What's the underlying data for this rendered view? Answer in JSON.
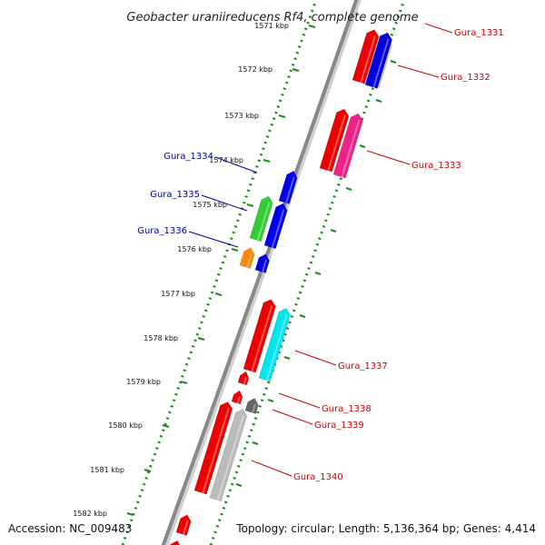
{
  "title": "Geobacter uraniireducens Rf4, complete genome",
  "footer": {
    "accession": "Accession: NC_009483",
    "summary": "Topology: circular; Length: 5,136,364 bp; Genes: 4,414"
  },
  "ticks": [
    "1571 kbp",
    "1572 kbp",
    "1573 kbp",
    "1574 kbp",
    "1575 kbp",
    "1576 kbp",
    "1577 kbp",
    "1578 kbp",
    "1579 kbp",
    "1580 kbp",
    "1581 kbp",
    "1582 kbp"
  ],
  "genes": [
    {
      "id": "Gura_1331",
      "strand": "forward",
      "color": "#cc0000"
    },
    {
      "id": "Gura_1332",
      "strand": "forward",
      "color": "#cc0000"
    },
    {
      "id": "Gura_1333",
      "strand": "forward",
      "color": "#cc0000"
    },
    {
      "id": "Gura_1334",
      "strand": "reverse",
      "color": "#000099"
    },
    {
      "id": "Gura_1335",
      "strand": "reverse",
      "color": "#000099"
    },
    {
      "id": "Gura_1336",
      "strand": "reverse",
      "color": "#000099"
    },
    {
      "id": "Gura_1337",
      "strand": "forward",
      "color": "#cc0000"
    },
    {
      "id": "Gura_1338",
      "strand": "forward",
      "color": "#cc0000"
    },
    {
      "id": "Gura_1339",
      "strand": "forward",
      "color": "#cc0000"
    },
    {
      "id": "Gura_1340",
      "strand": "forward",
      "color": "#cc0000"
    }
  ],
  "colors": {
    "backbone": "#888888",
    "tick_marks": "#1a8a1a",
    "label_forward": "#cc0000",
    "label_reverse": "#000099"
  }
}
